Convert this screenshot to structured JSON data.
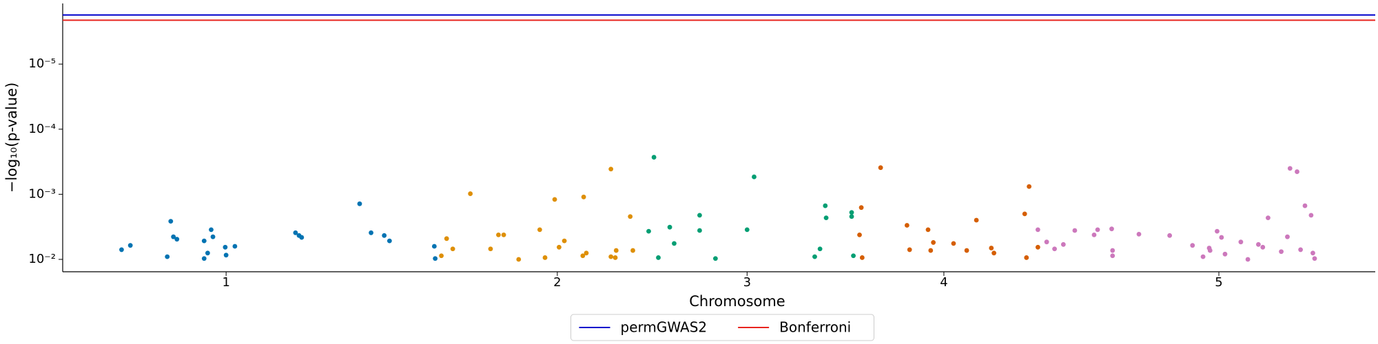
{
  "chart_data": {
    "type": "scatter",
    "xlabel": "Chromosome",
    "ylabel": "−log₁₀(p-value)",
    "xlim": [
      0,
      1494
    ],
    "xticks": [
      {
        "value": 186,
        "label": "1"
      },
      {
        "value": 563,
        "label": "2"
      },
      {
        "value": 779,
        "label": "3"
      },
      {
        "value": 1003,
        "label": "4"
      },
      {
        "value": 1316,
        "label": "5"
      }
    ],
    "ylim": [
      0.0155,
      1.17e-06
    ],
    "ylog": true,
    "yticks": [
      {
        "value": 0.01,
        "label": "10⁻²"
      },
      {
        "value": 0.001,
        "label": "10⁻³"
      },
      {
        "value": 0.0001,
        "label": "10⁻⁴"
      },
      {
        "value": 1e-05,
        "label": "10⁻⁵"
      }
    ],
    "series": [
      {
        "color": "#0173b2",
        "x": [
          67,
          77,
          119,
          123,
          126,
          130,
          161,
          161,
          165,
          169,
          171,
          185,
          186,
          196,
          265,
          269,
          272,
          338,
          351,
          366,
          372,
          423,
          424
        ],
        "values": [
          0.0071,
          0.0061,
          0.0091,
          0.0026,
          0.0045,
          0.0049,
          0.0052,
          0.0097,
          0.008,
          0.0035,
          0.0045,
          0.0065,
          0.0086,
          0.0063,
          0.0039,
          0.0043,
          0.0046,
          0.0014,
          0.0039,
          0.0043,
          0.0052,
          0.0063,
          0.0097
        ]
      },
      {
        "color": "#de8f05",
        "x": [
          431,
          437,
          444,
          464,
          487,
          496,
          502,
          519,
          543,
          549,
          560,
          565,
          571,
          592,
          593,
          596,
          624,
          624,
          629,
          630,
          646,
          649
        ],
        "values": [
          0.0088,
          0.0048,
          0.0069,
          0.00098,
          0.0069,
          0.0042,
          0.0042,
          0.01,
          0.0035,
          0.0094,
          0.0012,
          0.0065,
          0.0052,
          0.0088,
          0.0011,
          0.008,
          0.00041,
          0.0091,
          0.0094,
          0.0073,
          0.0022,
          0.0073
        ]
      },
      {
        "color": "#029e73",
        "x": [
          667,
          673,
          678,
          691,
          696,
          725,
          725,
          743,
          779,
          787,
          856,
          862,
          868,
          869,
          898,
          898,
          900
        ],
        "values": [
          0.0037,
          0.00027,
          0.0094,
          0.0032,
          0.0057,
          0.0021,
          0.0036,
          0.0097,
          0.0035,
          0.00054,
          0.0091,
          0.0069,
          0.0015,
          0.0023,
          0.0019,
          0.0022,
          0.0088
        ]
      },
      {
        "color": "#d55e00",
        "x": [
          907,
          909,
          910,
          931,
          961,
          964,
          985,
          988,
          991,
          1014,
          1029,
          1040,
          1057,
          1060,
          1095,
          1097,
          1100,
          1110
        ],
        "values": [
          0.0042,
          0.0016,
          0.0094,
          0.00039,
          0.003,
          0.0071,
          0.0035,
          0.0073,
          0.0055,
          0.0057,
          0.0073,
          0.0025,
          0.0067,
          0.008,
          0.002,
          0.0094,
          0.00076,
          0.0065
        ]
      },
      {
        "color": "#cc78bc",
        "x": [
          1110,
          1120,
          1129,
          1139,
          1152,
          1174,
          1178,
          1194,
          1195,
          1195,
          1225,
          1260,
          1286,
          1298,
          1305,
          1306,
          1314,
          1319,
          1323,
          1341,
          1349,
          1361,
          1366,
          1372,
          1387,
          1394,
          1397,
          1405,
          1409,
          1414,
          1421,
          1423,
          1425
        ],
        "values": [
          0.0035,
          0.0054,
          0.0069,
          0.0059,
          0.0036,
          0.0042,
          0.0035,
          0.0034,
          0.0073,
          0.0088,
          0.0041,
          0.0043,
          0.0061,
          0.0091,
          0.0067,
          0.0073,
          0.0037,
          0.0046,
          0.0083,
          0.0054,
          0.01,
          0.0059,
          0.0065,
          0.0023,
          0.0076,
          0.0045,
          0.0004,
          0.00045,
          0.0071,
          0.0015,
          0.0021,
          0.008,
          0.0097
        ]
      }
    ],
    "thresholds": [
      {
        "name": "permGWAS2",
        "color": "#0000cc",
        "value": 1.76e-06
      },
      {
        "name": "Bonferroni",
        "color": "#e8231e",
        "value": 2.12e-06
      }
    ],
    "legend": "bottom-center"
  }
}
